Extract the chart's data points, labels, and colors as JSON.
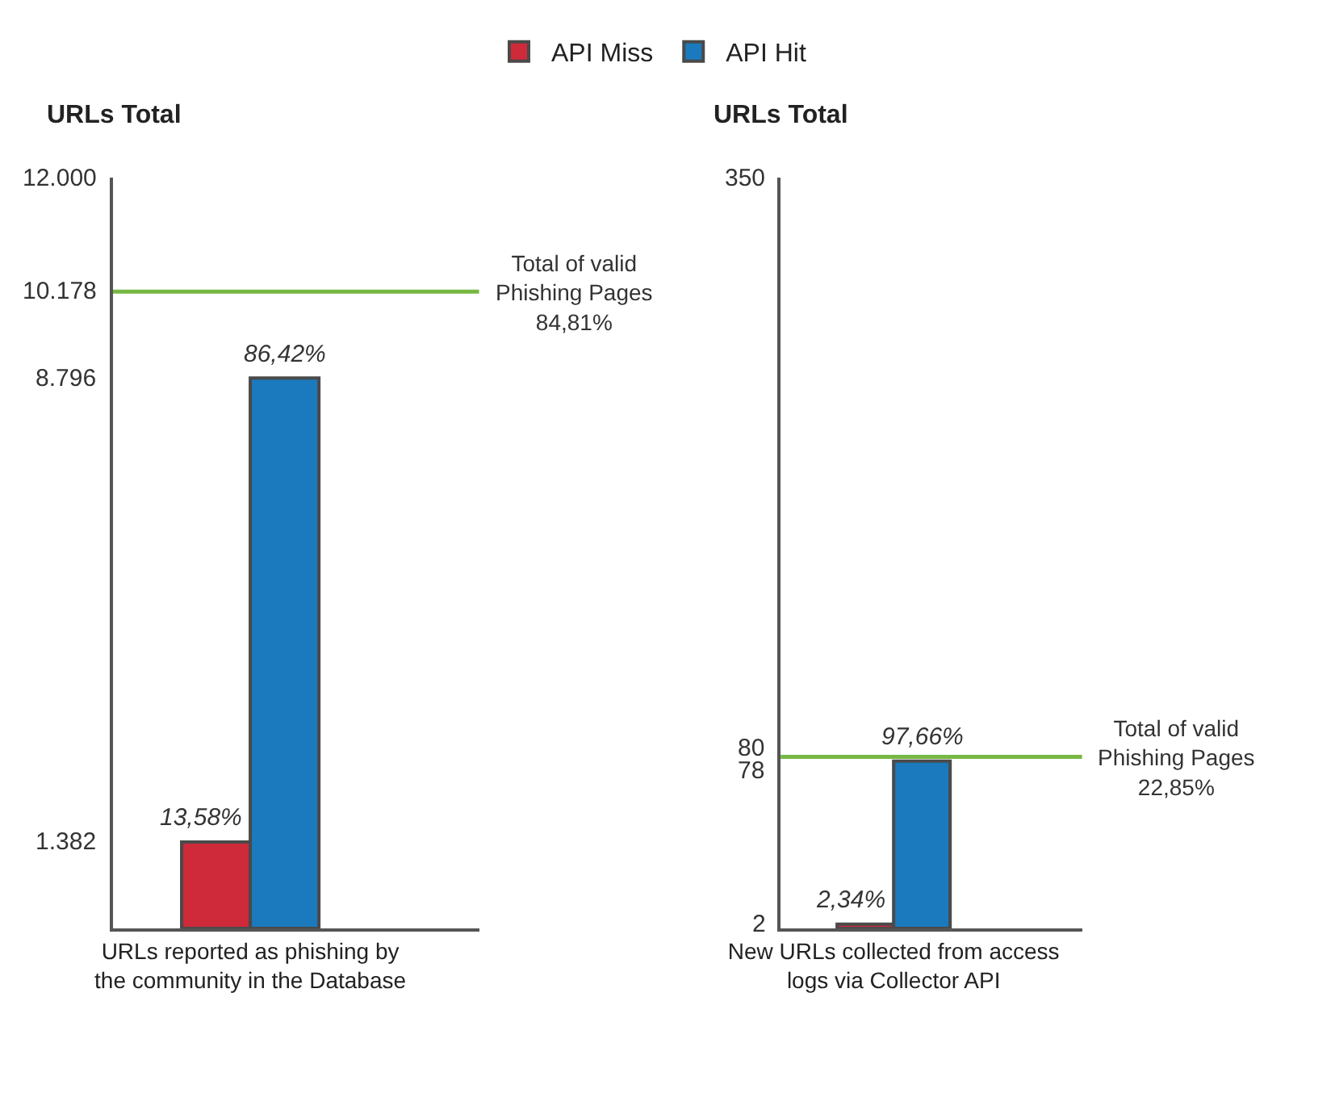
{
  "chart_data": [
    {
      "type": "bar",
      "ylabel": "URLs Total",
      "categories": [
        "URLs reported as phishing by the community in the Database"
      ],
      "series": [
        {
          "name": "API Miss",
          "color": "#cf2a3a",
          "values": [
            1382
          ]
        },
        {
          "name": "API Hit",
          "color": "#1b79bd",
          "values": [
            8796
          ]
        }
      ],
      "annotations": [
        {
          "text": "13,58%",
          "x": "URLs reported as phishing by the community in the Database",
          "y": 1382
        },
        {
          "text": "86,42%",
          "x": "URLs reported as phishing by the community in the Database",
          "y": 8796
        }
      ],
      "ylim": [
        0,
        12000
      ],
      "yticks": [
        {
          "value": 1382,
          "label": "1.382"
        },
        {
          "value": 8796,
          "label": "8.796"
        },
        {
          "value": 10178,
          "label": "10.178"
        },
        {
          "value": 12000,
          "label": "12.000"
        }
      ],
      "ref_lines": [
        {
          "axis": "y",
          "value": 10178,
          "label": "Total of valid Phishing Pages 84,81%",
          "color": "#77b843"
        }
      ],
      "legend": "top"
    },
    {
      "type": "bar",
      "ylabel": "URLs Total",
      "categories": [
        "New URLs collected from access logs via Collector API"
      ],
      "series": [
        {
          "name": "API Miss",
          "color": "#cf2a3a",
          "values": [
            2
          ]
        },
        {
          "name": "API Hit",
          "color": "#1b79bd",
          "values": [
            78
          ]
        }
      ],
      "annotations": [
        {
          "text": "2,34%",
          "x": "New URLs collected from access logs via Collector API",
          "y": 2
        },
        {
          "text": "97,66%",
          "x": "New URLs collected from access logs via Collector API",
          "y": 78
        }
      ],
      "ylim": [
        0,
        350
      ],
      "yticks": [
        2,
        78,
        80,
        350
      ],
      "ref_lines": [
        {
          "axis": "y",
          "value": 80,
          "label": "Total of valid Phishing Pages 22,85%",
          "color": "#77b843"
        }
      ]
    }
  ]
}
